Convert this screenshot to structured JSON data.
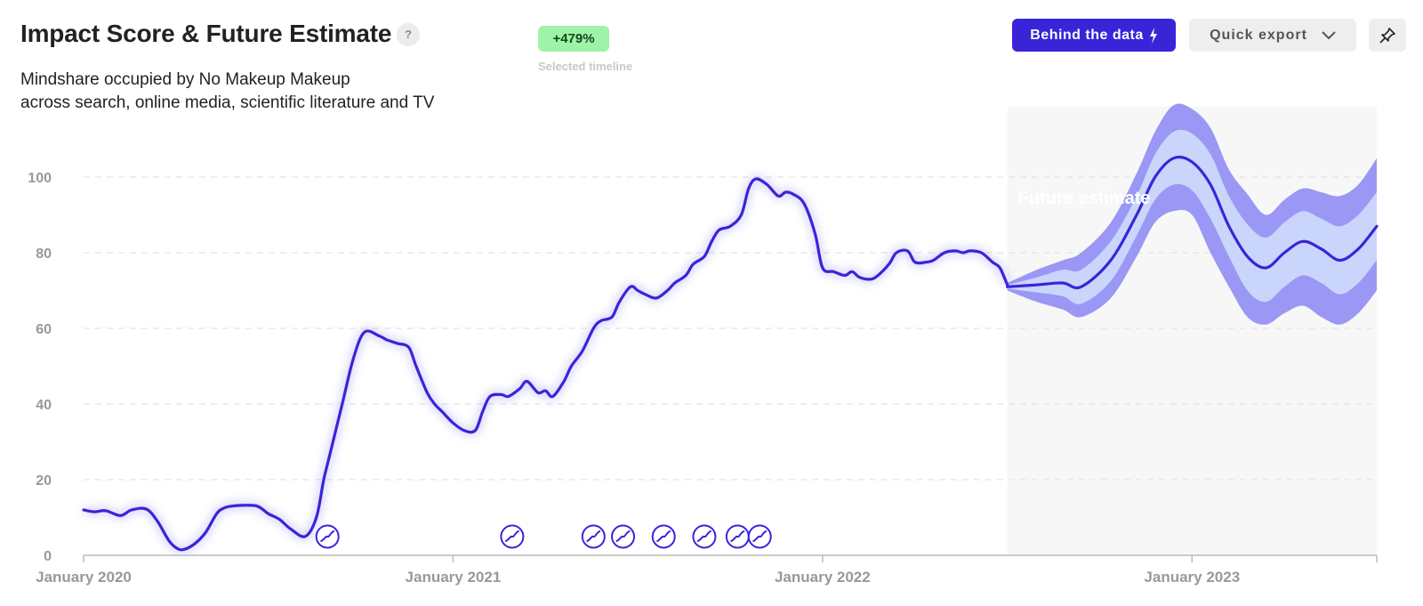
{
  "header": {
    "title": "Impact Score & Future Estimate",
    "help_glyph": "?",
    "subtitle_line1": "Mindshare occupied by No Makeup Makeup",
    "subtitle_line2": "across search, online media, scientific literature and TV",
    "change_badge": "+479%",
    "change_caption": "Selected timeline"
  },
  "toolbar": {
    "behind_label": "Behind the data",
    "behind_icon": "lightning-icon",
    "export_label": "Quick export",
    "export_icon": "chevron-down-icon",
    "pin_icon": "pin-icon"
  },
  "colors": {
    "line": "#3a24d8",
    "band_outer": "#9b97f5",
    "band_inner": "#c9d5fb",
    "forecast_bg": "#f7f7f7",
    "badge_bg": "#9ff3a8"
  },
  "chart_data": {
    "type": "line",
    "title": "Impact Score & Future Estimate",
    "xlabel": "",
    "ylabel": "",
    "ylim": [
      0,
      110
    ],
    "yticks": [
      0,
      20,
      40,
      60,
      80,
      100
    ],
    "xticks": [
      {
        "t": 2020.0,
        "label": "January 2020"
      },
      {
        "t": 2021.0,
        "label": "January 2021"
      },
      {
        "t": 2022.0,
        "label": "January 2022"
      },
      {
        "t": 2023.0,
        "label": "January 2023"
      }
    ],
    "xlim": [
      2020.0,
      2023.5
    ],
    "grid": "horizontal-dashed",
    "forecast_start": 2022.5,
    "forecast_label": "Future estimate",
    "series": [
      {
        "x": [
          2020.0,
          2020.03,
          2020.06,
          2020.1,
          2020.13,
          2020.17,
          2020.2,
          2020.23,
          2020.25,
          2020.27,
          2020.3,
          2020.33,
          2020.36,
          2020.38,
          2020.4,
          2020.43,
          2020.47,
          2020.5,
          2020.53,
          2020.56,
          2020.6,
          2020.63,
          2020.65,
          2020.67,
          2020.7,
          2020.73,
          2020.76,
          2020.8,
          2020.82,
          2020.85,
          2020.88,
          2020.9,
          2020.93,
          2020.95,
          2020.97,
          2021.0,
          2021.03,
          2021.06,
          2021.08,
          2021.1,
          2021.13,
          2021.15,
          2021.18,
          2021.2,
          2021.23,
          2021.25,
          2021.27,
          2021.3,
          2021.32,
          2021.35,
          2021.38,
          2021.4,
          2021.43,
          2021.45,
          2021.48,
          2021.5,
          2021.52,
          2021.55,
          2021.58,
          2021.6,
          2021.63,
          2021.65,
          2021.68,
          2021.7,
          2021.72,
          2021.75,
          2021.78,
          2021.8,
          2021.82,
          2021.85,
          2021.88,
          2021.9,
          2021.92,
          2021.95,
          2021.98,
          2022.0,
          2022.03,
          2022.06,
          2022.08,
          2022.1,
          2022.13,
          2022.15,
          2022.18,
          2022.2,
          2022.23,
          2022.25,
          2022.28,
          2022.3,
          2022.33,
          2022.36,
          2022.38,
          2022.4,
          2022.43,
          2022.46,
          2022.48,
          2022.5
        ],
        "y": [
          12,
          11.5,
          11.8,
          10.5,
          12,
          12.2,
          9,
          4,
          2,
          1.5,
          3,
          6,
          11,
          12.5,
          13,
          13.2,
          13,
          11,
          9.5,
          7,
          5,
          10,
          20,
          28,
          40,
          52,
          59,
          58,
          57,
          56,
          55,
          50,
          43,
          40,
          38,
          35,
          33,
          33,
          38,
          42,
          42.5,
          42,
          44,
          46,
          43,
          43.5,
          42,
          46,
          50,
          54,
          60,
          62,
          63,
          67,
          71,
          70,
          69,
          68,
          70,
          72,
          74,
          77,
          79,
          83,
          86,
          87,
          90,
          97,
          99.5,
          98,
          95,
          96,
          95.5,
          93,
          85,
          76,
          75,
          74,
          75,
          73.5,
          73,
          74,
          77,
          80,
          80.5,
          77.5,
          77.5,
          78,
          80,
          80.5,
          80,
          80.5,
          80,
          77.5,
          76,
          71.5
        ]
      },
      {
        "name": "Future estimate",
        "x": [
          2022.5,
          2022.58,
          2022.65,
          2022.7,
          2022.78,
          2022.85,
          2022.9,
          2022.95,
          2023.0,
          2023.05,
          2023.1,
          2023.15,
          2023.2,
          2023.25,
          2023.3,
          2023.35,
          2023.4,
          2023.45,
          2023.5
        ],
        "y": [
          71,
          71.5,
          72,
          71,
          78,
          90,
          100,
          105,
          104,
          98,
          87,
          79,
          76,
          80,
          83,
          81,
          78,
          81,
          87
        ],
        "band_inner_upper": [
          71.5,
          73.5,
          75.5,
          75.5,
          83,
          95,
          106,
          112,
          111.5,
          106,
          95,
          87.5,
          84,
          88,
          91,
          89,
          87,
          90,
          96
        ],
        "band_inner_lower": [
          70.5,
          69.5,
          68.5,
          66.5,
          72.5,
          84.5,
          94,
          98,
          96.5,
          89,
          79,
          70,
          67,
          71,
          74,
          72,
          69,
          72,
          78
        ],
        "band_outer_upper": [
          72,
          75.5,
          78,
          80,
          88,
          101,
          112,
          119,
          118,
          113,
          102,
          95.5,
          90,
          94,
          97,
          96,
          95,
          98,
          105
        ],
        "band_outer_lower": [
          70,
          67,
          65,
          63,
          68,
          79,
          88,
          91,
          90,
          80,
          71,
          63,
          61,
          64,
          66,
          63,
          61,
          64,
          70
        ]
      }
    ],
    "event_markers_x": [
      2020.66,
      2021.16,
      2021.38,
      2021.46,
      2021.57,
      2021.68,
      2021.77,
      2021.83
    ]
  }
}
